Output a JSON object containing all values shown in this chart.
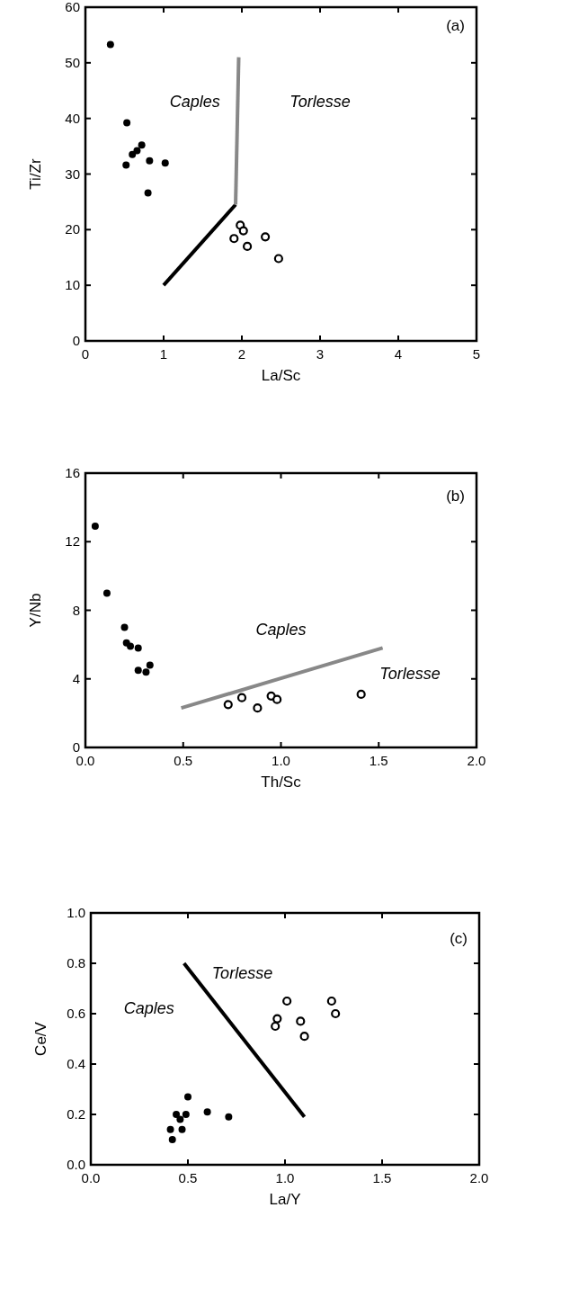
{
  "chart_data": [
    {
      "type": "scatter",
      "xlabel": "La/Sc",
      "ylabel": "Ti/Zr",
      "xlim": [
        0,
        5
      ],
      "ylim": [
        0,
        60
      ],
      "xticks": [
        0,
        1,
        2,
        3,
        4,
        5
      ],
      "yticks": [
        0,
        10,
        20,
        30,
        40,
        50,
        60
      ],
      "annotations": [
        "(a)",
        "Caples",
        "Torlesse"
      ],
      "series": [
        {
          "color": "#000000",
          "marker": "circle",
          "x": [
            0.32,
            0.53,
            0.52,
            0.6,
            0.66,
            0.72,
            0.8,
            0.82,
            1.02
          ],
          "values": [
            53.3,
            39.2,
            31.6,
            33.5,
            34.2,
            35.2,
            26.6,
            32.4,
            32.0
          ]
        },
        {
          "color": "#000000",
          "marker": "circle",
          "x": [
            1.9,
            1.98,
            2.02,
            2.07,
            2.3,
            2.47
          ],
          "values": [
            18.4,
            20.8,
            19.8,
            17.0,
            18.7,
            14.8
          ]
        },
        {
          "type": "line",
          "color": "#000000",
          "line_style": "solid",
          "x": [
            1.0,
            1.92
          ],
          "values": [
            10,
            24.5
          ]
        },
        {
          "type": "line",
          "color": "#888888",
          "line_style": "solid",
          "x": [
            1.92,
            1.96
          ],
          "values": [
            24.5,
            51
          ]
        }
      ]
    },
    {
      "type": "scatter",
      "xlabel": "Th/Sc",
      "ylabel": "Y/Nb",
      "xlim": [
        0,
        2
      ],
      "ylim": [
        0,
        16
      ],
      "xticks": [
        {
          "value": 0,
          "label": "0.0"
        },
        0.5,
        {
          "value": 1,
          "label": "1.0"
        },
        1.5,
        {
          "value": 2,
          "label": "2.0"
        }
      ],
      "yticks": [
        0,
        4,
        8,
        12,
        16
      ],
      "annotations": [
        "(b)",
        "Caples",
        "Torlesse"
      ],
      "series": [
        {
          "color": "#000000",
          "marker": "circle",
          "x": [
            0.05,
            0.11,
            0.2,
            0.21,
            0.23,
            0.27,
            0.27,
            0.31,
            0.33
          ],
          "values": [
            12.9,
            9.0,
            7.0,
            6.1,
            5.9,
            5.8,
            4.5,
            4.4,
            4.8
          ]
        },
        {
          "color": "#000000",
          "marker": "circle",
          "x": [
            0.73,
            0.8,
            0.88,
            0.95,
            0.98,
            1.41
          ],
          "values": [
            2.5,
            2.9,
            2.3,
            3.0,
            2.8,
            3.1
          ]
        },
        {
          "type": "line",
          "color": "#888888",
          "line_style": "solid",
          "x": [
            0.49,
            1.52
          ],
          "values": [
            2.3,
            5.8
          ]
        }
      ]
    },
    {
      "type": "scatter",
      "xlabel": "La/Y",
      "ylabel": "Ce/V",
      "xlim": [
        0,
        2
      ],
      "ylim": [
        0,
        1
      ],
      "xticks": [
        {
          "value": 0,
          "label": "0.0"
        },
        0.5,
        {
          "value": 1,
          "label": "1.0"
        },
        1.5,
        {
          "value": 2,
          "label": "2.0"
        }
      ],
      "yticks": [
        {
          "value": 0,
          "label": "0.0"
        },
        0.2,
        0.4,
        0.6,
        0.8,
        {
          "value": 1,
          "label": "1.0"
        }
      ],
      "annotations": [
        "(c)",
        "Caples",
        "Torlesse"
      ],
      "series": [
        {
          "color": "#000000",
          "marker": "circle",
          "x": [
            0.41,
            0.42,
            0.44,
            0.46,
            0.47,
            0.49,
            0.5,
            0.6,
            0.71
          ],
          "values": [
            0.14,
            0.1,
            0.2,
            0.18,
            0.14,
            0.2,
            0.27,
            0.21,
            0.19
          ]
        },
        {
          "color": "#000000",
          "marker": "circle",
          "x": [
            0.95,
            0.96,
            1.01,
            1.08,
            1.1,
            1.24,
            1.26
          ],
          "values": [
            0.55,
            0.58,
            0.65,
            0.57,
            0.51,
            0.65,
            0.6
          ]
        },
        {
          "type": "line",
          "color": "#000000",
          "line_style": "solid",
          "x": [
            0.48,
            1.1
          ],
          "values": [
            0.8,
            0.19
          ]
        }
      ]
    }
  ]
}
